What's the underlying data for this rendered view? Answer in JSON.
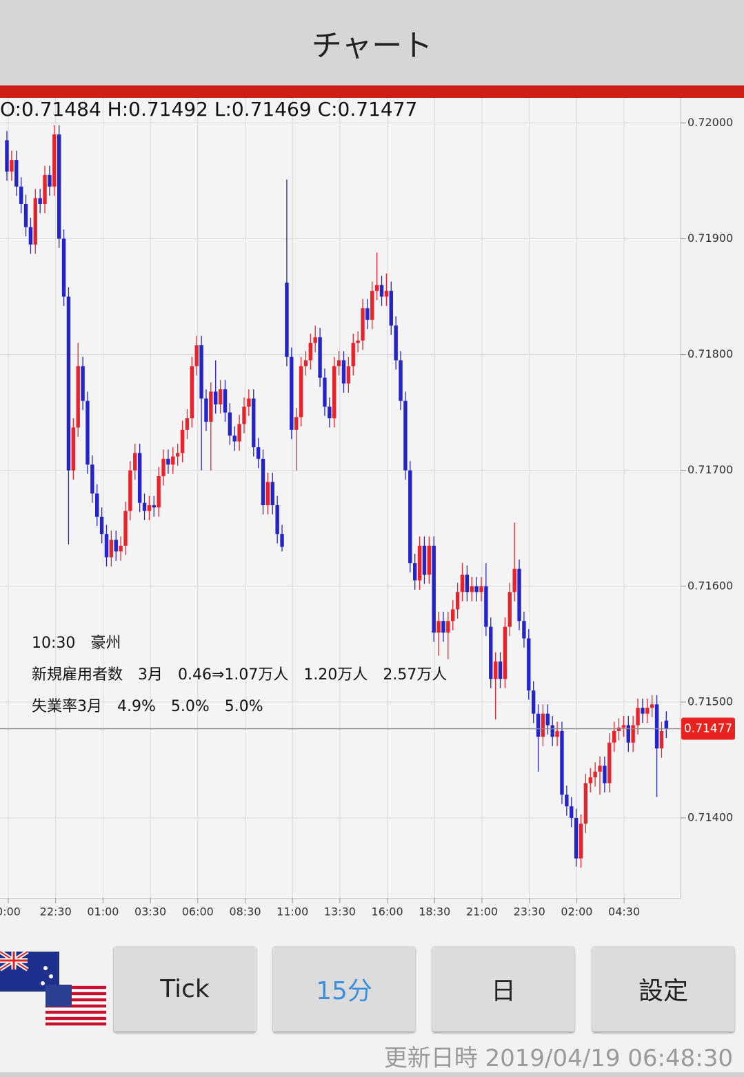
{
  "header": {
    "title": "チャート"
  },
  "chart_data": {
    "type": "candlestick",
    "ohlc_label": "O:0.71484 H:0.71492 L:0.71469 C:0.71477",
    "up_color": "#e8232b",
    "down_color": "#2424c8",
    "grid": true,
    "ylim": [
      0.71331,
      0.72021
    ],
    "yticks": [
      {
        "value": 0.714,
        "label": "0.71400"
      },
      {
        "value": 0.715,
        "label": "0.71500"
      },
      {
        "value": 0.716,
        "label": "0.71600"
      },
      {
        "value": 0.717,
        "label": "0.71700"
      },
      {
        "value": 0.718,
        "label": "0.71800"
      },
      {
        "value": 0.719,
        "label": "0.71900"
      },
      {
        "value": 0.72,
        "label": "0.72000"
      }
    ],
    "xticks": [
      "0:00",
      "22:30",
      "01:00",
      "03:30",
      "06:00",
      "08:30",
      "11:00",
      "13:30",
      "16:00",
      "18:30",
      "21:00",
      "23:30",
      "02:00",
      "04:30"
    ],
    "last_price": {
      "value": 0.71477,
      "label": "0.71477"
    },
    "annotation": [
      "10:30　豪州",
      "新規雇用者数　3月　0.46⇒1.07万人　1.20万人　2.57万人",
      "失業率3月　4.9%　5.0%　5.0%"
    ],
    "ohlc": [
      [
        0.71985,
        0.71993,
        0.7195,
        0.71958
      ],
      [
        0.71958,
        0.71976,
        0.7195,
        0.71968
      ],
      [
        0.71968,
        0.71976,
        0.71937,
        0.71945
      ],
      [
        0.71945,
        0.71953,
        0.71922,
        0.7193
      ],
      [
        0.7193,
        0.71938,
        0.71902,
        0.7191
      ],
      [
        0.7191,
        0.71918,
        0.71887,
        0.71895
      ],
      [
        0.71895,
        0.71943,
        0.71887,
        0.71935
      ],
      [
        0.71935,
        0.71943,
        0.71922,
        0.7193
      ],
      [
        0.7193,
        0.71963,
        0.71922,
        0.71955
      ],
      [
        0.71955,
        0.71963,
        0.71937,
        0.71945
      ],
      [
        0.71945,
        0.71998,
        0.71937,
        0.7199
      ],
      [
        0.7199,
        0.71998,
        0.71892,
        0.719
      ],
      [
        0.719,
        0.71908,
        0.71842,
        0.7185
      ],
      [
        0.7185,
        0.71858,
        0.71636,
        0.717
      ],
      [
        0.717,
        0.71745,
        0.71692,
        0.71737
      ],
      [
        0.71737,
        0.7181,
        0.71729,
        0.7179
      ],
      [
        0.7179,
        0.71798,
        0.71752,
        0.7176
      ],
      [
        0.7176,
        0.71768,
        0.71697,
        0.71705
      ],
      [
        0.71705,
        0.71713,
        0.71672,
        0.7168
      ],
      [
        0.7168,
        0.71688,
        0.71652,
        0.7166
      ],
      [
        0.7166,
        0.71668,
        0.71637,
        0.71645
      ],
      [
        0.71645,
        0.71653,
        0.71617,
        0.71625
      ],
      [
        0.71625,
        0.71648,
        0.71617,
        0.7164
      ],
      [
        0.7164,
        0.71648,
        0.71622,
        0.7163
      ],
      [
        0.7163,
        0.71643,
        0.71622,
        0.71635
      ],
      [
        0.71635,
        0.71673,
        0.71627,
        0.71665
      ],
      [
        0.71665,
        0.71708,
        0.71657,
        0.717
      ],
      [
        0.717,
        0.71723,
        0.71692,
        0.71715
      ],
      [
        0.71715,
        0.71723,
        0.71664,
        0.71672
      ],
      [
        0.71672,
        0.7168,
        0.71657,
        0.71665
      ],
      [
        0.71665,
        0.71678,
        0.71657,
        0.7167
      ],
      [
        0.7167,
        0.71678,
        0.7166,
        0.71668
      ],
      [
        0.71668,
        0.71703,
        0.7166,
        0.71695
      ],
      [
        0.71695,
        0.71718,
        0.71687,
        0.7171
      ],
      [
        0.7171,
        0.71718,
        0.71697,
        0.71705
      ],
      [
        0.71705,
        0.7172,
        0.71697,
        0.71712
      ],
      [
        0.71712,
        0.71723,
        0.71704,
        0.71715
      ],
      [
        0.71715,
        0.71743,
        0.71707,
        0.71735
      ],
      [
        0.71735,
        0.71753,
        0.71727,
        0.71745
      ],
      [
        0.71745,
        0.71798,
        0.71737,
        0.7179
      ],
      [
        0.7179,
        0.71816,
        0.71782,
        0.71808
      ],
      [
        0.71808,
        0.71816,
        0.717,
        0.71762
      ],
      [
        0.71762,
        0.7177,
        0.71734,
        0.71742
      ],
      [
        0.71742,
        0.71776,
        0.717,
        0.71768
      ],
      [
        0.71768,
        0.71795,
        0.71749,
        0.71757
      ],
      [
        0.71757,
        0.71778,
        0.71749,
        0.7177
      ],
      [
        0.7177,
        0.71778,
        0.71742,
        0.7175
      ],
      [
        0.7175,
        0.71758,
        0.71722,
        0.7173
      ],
      [
        0.7173,
        0.71738,
        0.71717,
        0.71725
      ],
      [
        0.71725,
        0.71748,
        0.71717,
        0.7174
      ],
      [
        0.7174,
        0.71763,
        0.71732,
        0.71755
      ],
      [
        0.71755,
        0.7177,
        0.71747,
        0.71762
      ],
      [
        0.71762,
        0.7177,
        0.71712,
        0.7172
      ],
      [
        0.7172,
        0.71728,
        0.71702,
        0.7171
      ],
      [
        0.7171,
        0.71718,
        0.71662,
        0.7167
      ],
      [
        0.7167,
        0.71698,
        0.71662,
        0.7169
      ],
      [
        0.7169,
        0.71698,
        0.71662,
        0.7167
      ],
      [
        0.7167,
        0.71678,
        0.71637,
        0.71645
      ],
      [
        0.71645,
        0.71653,
        0.7163,
        0.71634
      ],
      [
        0.71862,
        0.71951,
        0.7179,
        0.71798
      ],
      [
        0.71798,
        0.71806,
        0.71727,
        0.71735
      ],
      [
        0.71735,
        0.71754,
        0.717,
        0.71746
      ],
      [
        0.71746,
        0.71798,
        0.71738,
        0.7179
      ],
      [
        0.7179,
        0.71803,
        0.71782,
        0.71795
      ],
      [
        0.71795,
        0.71818,
        0.71787,
        0.7181
      ],
      [
        0.7181,
        0.71825,
        0.71802,
        0.71815
      ],
      [
        0.71815,
        0.71823,
        0.71772,
        0.7178
      ],
      [
        0.7178,
        0.71788,
        0.71747,
        0.71755
      ],
      [
        0.71755,
        0.71763,
        0.71737,
        0.71745
      ],
      [
        0.71745,
        0.71798,
        0.71737,
        0.7179
      ],
      [
        0.7179,
        0.71803,
        0.71782,
        0.71795
      ],
      [
        0.71795,
        0.71803,
        0.71767,
        0.71775
      ],
      [
        0.71775,
        0.71798,
        0.71767,
        0.7179
      ],
      [
        0.7179,
        0.71818,
        0.71782,
        0.7181
      ],
      [
        0.7181,
        0.7182,
        0.71802,
        0.71812
      ],
      [
        0.71812,
        0.71848,
        0.71804,
        0.7184
      ],
      [
        0.7184,
        0.71848,
        0.71822,
        0.7183
      ],
      [
        0.7183,
        0.71863,
        0.71822,
        0.71855
      ],
      [
        0.71855,
        0.71888,
        0.71847,
        0.7186
      ],
      [
        0.7186,
        0.71868,
        0.71842,
        0.7185
      ],
      [
        0.7185,
        0.7187,
        0.71842,
        0.71855
      ],
      [
        0.71855,
        0.71863,
        0.71817,
        0.71825
      ],
      [
        0.71825,
        0.71833,
        0.71787,
        0.71795
      ],
      [
        0.71795,
        0.71803,
        0.71752,
        0.7176
      ],
      [
        0.7176,
        0.71768,
        0.71692,
        0.717
      ],
      [
        0.717,
        0.71708,
        0.71612,
        0.7162
      ],
      [
        0.7162,
        0.71628,
        0.71597,
        0.71605
      ],
      [
        0.71605,
        0.71643,
        0.71597,
        0.71635
      ],
      [
        0.71635,
        0.71643,
        0.71602,
        0.7161
      ],
      [
        0.7161,
        0.71643,
        0.71602,
        0.71635
      ],
      [
        0.71635,
        0.71643,
        0.71552,
        0.7156
      ],
      [
        0.7156,
        0.71578,
        0.7154,
        0.7157
      ],
      [
        0.7157,
        0.71578,
        0.71552,
        0.7156
      ],
      [
        0.7156,
        0.71578,
        0.71537,
        0.7157
      ],
      [
        0.7157,
        0.71588,
        0.71562,
        0.7158
      ],
      [
        0.7158,
        0.71603,
        0.71572,
        0.71595
      ],
      [
        0.71595,
        0.7162,
        0.71587,
        0.7161
      ],
      [
        0.7161,
        0.71618,
        0.71587,
        0.71595
      ],
      [
        0.71595,
        0.71608,
        0.71587,
        0.716
      ],
      [
        0.716,
        0.71608,
        0.71587,
        0.71595
      ],
      [
        0.71595,
        0.71608,
        0.71587,
        0.716
      ],
      [
        0.716,
        0.7162,
        0.71557,
        0.71565
      ],
      [
        0.71565,
        0.71573,
        0.71512,
        0.7152
      ],
      [
        0.7152,
        0.71543,
        0.71485,
        0.71535
      ],
      [
        0.71535,
        0.71543,
        0.71512,
        0.7152
      ],
      [
        0.7152,
        0.71573,
        0.71512,
        0.71565
      ],
      [
        0.71565,
        0.71603,
        0.71557,
        0.71595
      ],
      [
        0.71595,
        0.71655,
        0.71587,
        0.71615
      ],
      [
        0.71615,
        0.71623,
        0.71562,
        0.7157
      ],
      [
        0.7157,
        0.71578,
        0.71547,
        0.71555
      ],
      [
        0.71555,
        0.71563,
        0.71502,
        0.7151
      ],
      [
        0.7151,
        0.71518,
        0.71482,
        0.7149
      ],
      [
        0.7149,
        0.71498,
        0.7144,
        0.7147
      ],
      [
        0.7147,
        0.71498,
        0.71462,
        0.7149
      ],
      [
        0.7149,
        0.71498,
        0.71472,
        0.7148
      ],
      [
        0.7148,
        0.71488,
        0.71462,
        0.7147
      ],
      [
        0.7147,
        0.71483,
        0.71462,
        0.71475
      ],
      [
        0.71475,
        0.71483,
        0.71412,
        0.7142
      ],
      [
        0.7142,
        0.71428,
        0.71402,
        0.7141
      ],
      [
        0.7141,
        0.71418,
        0.71392,
        0.714
      ],
      [
        0.714,
        0.71408,
        0.71358,
        0.71365
      ],
      [
        0.71365,
        0.71403,
        0.71357,
        0.71395
      ],
      [
        0.71395,
        0.71438,
        0.71387,
        0.7143
      ],
      [
        0.7143,
        0.71443,
        0.71422,
        0.71435
      ],
      [
        0.71435,
        0.71448,
        0.71427,
        0.7144
      ],
      [
        0.7144,
        0.71453,
        0.7142,
        0.71445
      ],
      [
        0.71445,
        0.71453,
        0.71422,
        0.7143
      ],
      [
        0.7143,
        0.71473,
        0.71422,
        0.71465
      ],
      [
        0.71465,
        0.71483,
        0.71457,
        0.71475
      ],
      [
        0.71475,
        0.71486,
        0.71467,
        0.71478
      ],
      [
        0.71478,
        0.71488,
        0.7147,
        0.7148
      ],
      [
        0.7148,
        0.71488,
        0.71457,
        0.71465
      ],
      [
        0.71465,
        0.71488,
        0.71457,
        0.7148
      ],
      [
        0.7148,
        0.71503,
        0.71472,
        0.71495
      ],
      [
        0.71495,
        0.71503,
        0.71482,
        0.7149
      ],
      [
        0.7149,
        0.71503,
        0.71482,
        0.71495
      ],
      [
        0.71495,
        0.71506,
        0.71487,
        0.71498
      ],
      [
        0.71498,
        0.71506,
        0.71418,
        0.7146
      ],
      [
        0.7146,
        0.71483,
        0.71452,
        0.71475
      ],
      [
        0.71484,
        0.71492,
        0.71469,
        0.71477
      ]
    ]
  },
  "buttons": [
    "Tick",
    "15分",
    "日",
    "設定"
  ],
  "footer": "更新日時 2019/04/19 06:48:30"
}
